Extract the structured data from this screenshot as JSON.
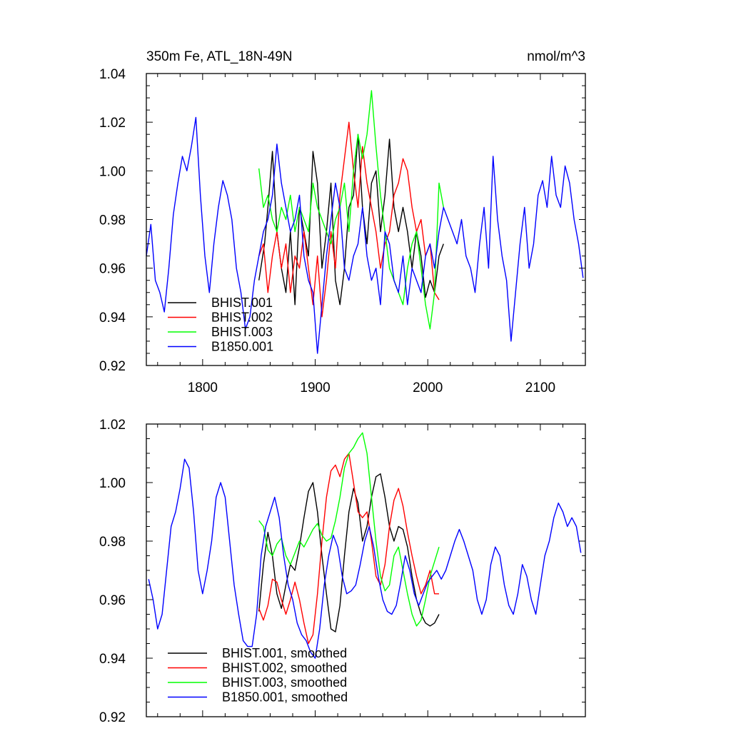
{
  "chart_data": [
    {
      "type": "line",
      "title": "350m Fe, ATL_18N-49N",
      "units": "nmol/m^3",
      "xlim": [
        1750,
        2140
      ],
      "ylim": [
        0.92,
        1.04
      ],
      "xticks": [
        1800,
        1900,
        2000,
        2100
      ],
      "xtick_labels": [
        "1800",
        "1900",
        "2000",
        "2100"
      ],
      "yticks": [
        0.92,
        0.94,
        0.96,
        0.98,
        1.0,
        1.02,
        1.04
      ],
      "ytick_labels": [
        "0.92",
        "0.94",
        "0.96",
        "0.98",
        "1.00",
        "1.02",
        "1.04"
      ],
      "legend": "bottom-left",
      "series": [
        {
          "name": "BHIST.001",
          "color": "#000000",
          "x": [
            1850,
            1855,
            1858,
            1862,
            1866,
            1870,
            1874,
            1878,
            1882,
            1886,
            1890,
            1894,
            1898,
            1902,
            1906,
            1910,
            1914,
            1918,
            1922,
            1926,
            1930,
            1934,
            1938,
            1942,
            1946,
            1950,
            1954,
            1958,
            1962,
            1966,
            1970,
            1974,
            1978,
            1982,
            1986,
            1990,
            1994,
            1998,
            2002,
            2006,
            2010,
            2014
          ],
          "y": [
            0.955,
            0.97,
            0.985,
            1.008,
            0.975,
            0.96,
            0.95,
            0.975,
            0.945,
            0.985,
            0.975,
            0.965,
            1.008,
            0.995,
            0.96,
            0.975,
            0.995,
            0.955,
            0.945,
            0.96,
            0.985,
            0.99,
            1.015,
            0.985,
            0.97,
            0.995,
            1.0,
            0.975,
            0.99,
            1.013,
            0.985,
            0.975,
            0.985,
            0.975,
            0.96,
            0.975,
            0.965,
            0.948,
            0.955,
            0.95,
            0.965,
            0.97
          ]
        },
        {
          "name": "BHIST.002",
          "color": "#ff0000",
          "x": [
            1850,
            1854,
            1858,
            1862,
            1866,
            1870,
            1874,
            1878,
            1882,
            1886,
            1890,
            1894,
            1898,
            1902,
            1906,
            1910,
            1914,
            1918,
            1922,
            1926,
            1930,
            1934,
            1938,
            1942,
            1946,
            1950,
            1954,
            1958,
            1962,
            1966,
            1970,
            1974,
            1978,
            1982,
            1986,
            1990,
            1994,
            1998,
            2002,
            2006,
            2010
          ],
          "y": [
            0.965,
            0.97,
            0.95,
            0.965,
            0.975,
            0.96,
            0.97,
            0.95,
            0.965,
            0.96,
            0.975,
            0.96,
            0.945,
            0.965,
            0.94,
            0.955,
            0.975,
            0.96,
            0.99,
            1.005,
            1.02,
            1.0,
            0.985,
            1.01,
            0.995,
            0.985,
            0.975,
            0.96,
            0.97,
            0.975,
            0.99,
            0.995,
            1.005,
            1.0,
            0.985,
            0.975,
            0.98,
            0.965,
            0.97,
            0.95,
            0.947
          ]
        },
        {
          "name": "BHIST.003",
          "color": "#00ff00",
          "x": [
            1850,
            1854,
            1858,
            1862,
            1866,
            1870,
            1874,
            1878,
            1882,
            1886,
            1890,
            1894,
            1898,
            1902,
            1906,
            1910,
            1914,
            1918,
            1922,
            1926,
            1930,
            1934,
            1938,
            1942,
            1946,
            1950,
            1954,
            1958,
            1962,
            1966,
            1970,
            1974,
            1978,
            1982,
            1986,
            1990,
            1994,
            1998,
            2002,
            2006,
            2010,
            2014
          ],
          "y": [
            1.001,
            0.985,
            0.99,
            0.98,
            0.975,
            0.985,
            0.98,
            0.99,
            0.975,
            0.985,
            0.98,
            0.975,
            0.995,
            0.985,
            0.98,
            0.975,
            0.97,
            0.98,
            0.985,
            0.995,
            0.975,
            1.0,
            1.015,
            1.005,
            1.015,
            1.033,
            1.01,
            0.99,
            0.975,
            0.96,
            0.955,
            0.95,
            0.945,
            0.96,
            0.97,
            0.975,
            0.96,
            0.945,
            0.935,
            0.95,
            0.995,
            0.985
          ]
        },
        {
          "name": "B1850.001",
          "color": "#0000ff",
          "x": [
            1750,
            1754,
            1758,
            1762,
            1766,
            1770,
            1774,
            1778,
            1782,
            1786,
            1790,
            1794,
            1798,
            1802,
            1806,
            1810,
            1814,
            1818,
            1822,
            1826,
            1830,
            1834,
            1838,
            1842,
            1846,
            1850,
            1854,
            1858,
            1862,
            1866,
            1870,
            1874,
            1878,
            1882,
            1886,
            1890,
            1894,
            1898,
            1902,
            1906,
            1910,
            1914,
            1918,
            1922,
            1926,
            1930,
            1934,
            1938,
            1942,
            1946,
            1950,
            1954,
            1958,
            1962,
            1966,
            1970,
            1974,
            1978,
            1982,
            1986,
            1990,
            1994,
            1998,
            2002,
            2006,
            2010,
            2014,
            2018,
            2022,
            2026,
            2030,
            2034,
            2038,
            2042,
            2046,
            2050,
            2054,
            2058,
            2062,
            2066,
            2070,
            2074,
            2078,
            2082,
            2086,
            2090,
            2094,
            2098,
            2102,
            2106,
            2110,
            2114,
            2118,
            2122,
            2126,
            2130,
            2134,
            2138
          ],
          "y": [
            0.965,
            0.978,
            0.955,
            0.95,
            0.942,
            0.96,
            0.982,
            0.995,
            1.006,
            1.0,
            1.01,
            1.022,
            0.99,
            0.965,
            0.95,
            0.97,
            0.985,
            0.996,
            0.99,
            0.98,
            0.96,
            0.95,
            0.935,
            0.94,
            0.955,
            0.965,
            0.975,
            0.98,
            0.99,
            1.011,
            0.995,
            0.985,
            0.975,
            0.98,
            0.99,
            0.965,
            0.955,
            0.95,
            0.925,
            0.945,
            0.965,
            0.98,
            0.995,
            0.985,
            0.96,
            0.955,
            0.965,
            0.97,
            0.985,
            0.965,
            0.955,
            0.96,
            0.945,
            0.975,
            0.97,
            0.955,
            0.95,
            0.965,
            0.945,
            0.96,
            0.955,
            0.95,
            0.965,
            0.97,
            0.96,
            0.975,
            0.985,
            0.98,
            0.975,
            0.97,
            0.98,
            0.965,
            0.96,
            0.95,
            0.97,
            0.985,
            0.96,
            1.006,
            0.98,
            0.965,
            0.955,
            0.93,
            0.95,
            0.97,
            0.985,
            0.96,
            0.97,
            0.99,
            0.996,
            0.985,
            1.006,
            0.99,
            0.985,
            1.002,
            0.995,
            0.98,
            0.97,
            0.956
          ]
        }
      ]
    },
    {
      "type": "line",
      "xlim": [
        1750,
        2140
      ],
      "ylim": [
        0.92,
        1.02
      ],
      "xticks": [
        1800,
        1900,
        2000,
        2100
      ],
      "yticks": [
        0.92,
        0.94,
        0.96,
        0.98,
        1.0,
        1.02
      ],
      "ytick_labels": [
        "0.92",
        "0.94",
        "0.96",
        "0.98",
        "1.00",
        "1.02"
      ],
      "legend": "bottom-left",
      "series": [
        {
          "name": "BHIST.001, smoothed",
          "color": "#000000",
          "x": [
            1850,
            1854,
            1858,
            1862,
            1866,
            1870,
            1874,
            1878,
            1882,
            1886,
            1890,
            1894,
            1898,
            1902,
            1906,
            1910,
            1914,
            1918,
            1922,
            1926,
            1930,
            1934,
            1938,
            1942,
            1946,
            1950,
            1954,
            1958,
            1962,
            1966,
            1970,
            1974,
            1978,
            1982,
            1986,
            1990,
            1994,
            1998,
            2002,
            2006,
            2010
          ],
          "y": [
            0.956,
            0.972,
            0.983,
            0.975,
            0.962,
            0.957,
            0.965,
            0.972,
            0.97,
            0.978,
            0.988,
            0.997,
            1.0,
            0.99,
            0.975,
            0.962,
            0.95,
            0.949,
            0.958,
            0.975,
            0.99,
            0.998,
            0.993,
            0.98,
            0.985,
            0.995,
            1.002,
            1.003,
            0.995,
            0.985,
            0.98,
            0.985,
            0.984,
            0.978,
            0.968,
            0.96,
            0.955,
            0.952,
            0.951,
            0.952,
            0.955
          ]
        },
        {
          "name": "BHIST.002, smoothed",
          "color": "#ff0000",
          "x": [
            1850,
            1854,
            1858,
            1862,
            1866,
            1870,
            1874,
            1878,
            1882,
            1886,
            1890,
            1894,
            1898,
            1902,
            1906,
            1910,
            1914,
            1918,
            1922,
            1926,
            1930,
            1934,
            1938,
            1942,
            1946,
            1950,
            1954,
            1958,
            1962,
            1966,
            1970,
            1974,
            1978,
            1982,
            1986,
            1990,
            1994,
            1998,
            2002,
            2006,
            2010
          ],
          "y": [
            0.957,
            0.953,
            0.958,
            0.967,
            0.966,
            0.96,
            0.955,
            0.96,
            0.966,
            0.96,
            0.952,
            0.945,
            0.948,
            0.962,
            0.98,
            0.995,
            1.004,
            1.006,
            1.002,
            1.008,
            1.01,
            1.0,
            0.99,
            0.988,
            0.99,
            0.98,
            0.968,
            0.965,
            0.972,
            0.985,
            0.994,
            0.998,
            0.992,
            0.983,
            0.975,
            0.968,
            0.962,
            0.965,
            0.97,
            0.962,
            0.962
          ]
        },
        {
          "name": "BHIST.003, smoothed",
          "color": "#00ff00",
          "x": [
            1850,
            1854,
            1858,
            1862,
            1866,
            1870,
            1874,
            1878,
            1882,
            1886,
            1890,
            1894,
            1898,
            1902,
            1906,
            1910,
            1914,
            1918,
            1922,
            1926,
            1930,
            1934,
            1938,
            1942,
            1946,
            1950,
            1954,
            1958,
            1962,
            1966,
            1970,
            1974,
            1978,
            1982,
            1986,
            1990,
            1994,
            1998,
            2002,
            2006,
            2010
          ],
          "y": [
            0.987,
            0.985,
            0.977,
            0.975,
            0.979,
            0.981,
            0.975,
            0.972,
            0.976,
            0.98,
            0.978,
            0.981,
            0.984,
            0.986,
            0.982,
            0.98,
            0.981,
            0.987,
            0.995,
            1.005,
            1.01,
            1.012,
            1.015,
            1.017,
            1.01,
            0.995,
            0.98,
            0.968,
            0.963,
            0.965,
            0.975,
            0.978,
            0.97,
            0.962,
            0.955,
            0.951,
            0.953,
            0.96,
            0.968,
            0.973,
            0.978
          ]
        },
        {
          "name": "B1850.001, smoothed",
          "color": "#0000ff",
          "x": [
            1752,
            1756,
            1760,
            1764,
            1768,
            1772,
            1776,
            1780,
            1784,
            1788,
            1792,
            1796,
            1800,
            1804,
            1808,
            1812,
            1816,
            1820,
            1824,
            1828,
            1832,
            1836,
            1840,
            1844,
            1848,
            1852,
            1856,
            1860,
            1864,
            1868,
            1872,
            1876,
            1880,
            1884,
            1888,
            1892,
            1896,
            1900,
            1904,
            1908,
            1912,
            1916,
            1920,
            1924,
            1928,
            1932,
            1936,
            1940,
            1944,
            1948,
            1952,
            1956,
            1960,
            1964,
            1968,
            1972,
            1976,
            1980,
            1984,
            1988,
            1992,
            1996,
            2000,
            2004,
            2008,
            2012,
            2016,
            2020,
            2024,
            2028,
            2032,
            2036,
            2040,
            2044,
            2048,
            2052,
            2056,
            2060,
            2064,
            2068,
            2072,
            2076,
            2080,
            2084,
            2088,
            2092,
            2096,
            2100,
            2104,
            2108,
            2112,
            2116,
            2120,
            2124,
            2128,
            2132,
            2136
          ],
          "y": [
            0.967,
            0.96,
            0.95,
            0.955,
            0.97,
            0.985,
            0.99,
            0.998,
            1.008,
            1.005,
            0.99,
            0.97,
            0.962,
            0.97,
            0.98,
            0.995,
            1.0,
            0.995,
            0.98,
            0.965,
            0.955,
            0.946,
            0.944,
            0.944,
            0.955,
            0.975,
            0.985,
            0.99,
            0.995,
            0.988,
            0.975,
            0.965,
            0.96,
            0.952,
            0.948,
            0.946,
            0.942,
            0.94,
            0.95,
            0.965,
            0.975,
            0.982,
            0.978,
            0.968,
            0.962,
            0.963,
            0.965,
            0.972,
            0.98,
            0.985,
            0.978,
            0.968,
            0.96,
            0.956,
            0.955,
            0.958,
            0.966,
            0.975,
            0.97,
            0.962,
            0.958,
            0.962,
            0.966,
            0.968,
            0.97,
            0.967,
            0.97,
            0.975,
            0.98,
            0.984,
            0.98,
            0.975,
            0.97,
            0.96,
            0.955,
            0.96,
            0.972,
            0.978,
            0.975,
            0.965,
            0.958,
            0.955,
            0.962,
            0.972,
            0.968,
            0.96,
            0.955,
            0.965,
            0.975,
            0.98,
            0.988,
            0.993,
            0.99,
            0.985,
            0.988,
            0.985,
            0.976
          ]
        }
      ]
    }
  ]
}
